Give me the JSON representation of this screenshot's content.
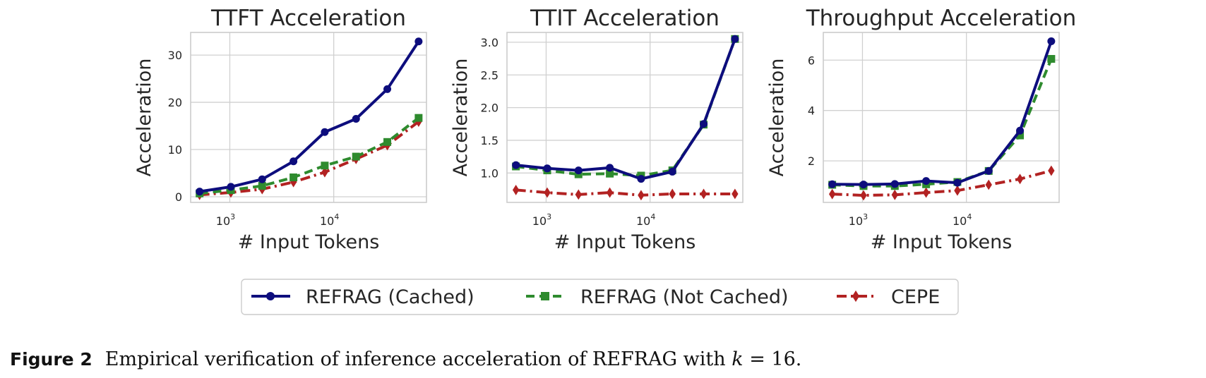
{
  "chart_data": [
    {
      "type": "line",
      "title": "TTFT Acceleration",
      "xlabel": "# Input Tokens",
      "ylabel": "Acceleration",
      "xscale": "log",
      "xlim": [
        420,
        78000
      ],
      "ylim": [
        -1.2,
        34.8
      ],
      "xticks": [
        {
          "value": 1000,
          "base": "10",
          "exp": "3"
        },
        {
          "value": 10000,
          "base": "10",
          "exp": "4"
        }
      ],
      "yticks": [
        {
          "value": 0,
          "label": "0"
        },
        {
          "value": 10,
          "label": "10"
        },
        {
          "value": 20,
          "label": "20"
        },
        {
          "value": 30,
          "label": "30"
        }
      ],
      "x": [
        512,
        1024,
        2048,
        4096,
        8192,
        16384,
        32768,
        65536
      ],
      "series": [
        {
          "name": "REFRAG (Cached)",
          "values": [
            1.1,
            2.1,
            3.7,
            7.5,
            13.7,
            16.5,
            22.8,
            32.9
          ]
        },
        {
          "name": "REFRAG (Not Cached)",
          "values": [
            0.7,
            1.4,
            2.3,
            4.1,
            6.6,
            8.5,
            11.6,
            16.7
          ]
        },
        {
          "name": "CEPE",
          "values": [
            0.4,
            0.9,
            1.6,
            3.1,
            5.2,
            8.0,
            10.9,
            15.9
          ]
        }
      ],
      "grid": true
    },
    {
      "type": "line",
      "title": "TTIT Acceleration",
      "xlabel": "# Input Tokens",
      "ylabel": "Acceleration",
      "xscale": "log",
      "xlim": [
        420,
        78000
      ],
      "ylim": [
        0.55,
        3.15
      ],
      "xticks": [
        {
          "value": 1000,
          "base": "10",
          "exp": "3"
        },
        {
          "value": 10000,
          "base": "10",
          "exp": "4"
        }
      ],
      "yticks": [
        {
          "value": 1.0,
          "label": "1.0"
        },
        {
          "value": 1.5,
          "label": "1.5"
        },
        {
          "value": 2.0,
          "label": "2.0"
        },
        {
          "value": 2.5,
          "label": "2.5"
        },
        {
          "value": 3.0,
          "label": "3.0"
        }
      ],
      "x": [
        512,
        1024,
        2048,
        4096,
        8192,
        16384,
        32768,
        65536
      ],
      "series": [
        {
          "name": "REFRAG (Cached)",
          "values": [
            1.12,
            1.07,
            1.04,
            1.08,
            0.91,
            1.02,
            1.75,
            3.05
          ]
        },
        {
          "name": "REFRAG (Not Cached)",
          "values": [
            1.1,
            1.04,
            0.98,
            0.99,
            0.96,
            1.04,
            1.74,
            3.05
          ]
        },
        {
          "name": "CEPE",
          "values": [
            0.74,
            0.7,
            0.67,
            0.7,
            0.66,
            0.68,
            0.68,
            0.68
          ]
        }
      ],
      "grid": true
    },
    {
      "type": "line",
      "title": "Throughput Acceleration",
      "xlabel": "# Input Tokens",
      "ylabel": "Acceleration",
      "xscale": "log",
      "xlim": [
        420,
        78000
      ],
      "ylim": [
        0.35,
        7.1
      ],
      "xticks": [
        {
          "value": 1000,
          "base": "10",
          "exp": "3"
        },
        {
          "value": 10000,
          "base": "10",
          "exp": "4"
        }
      ],
      "yticks": [
        {
          "value": 2,
          "label": "2"
        },
        {
          "value": 4,
          "label": "4"
        },
        {
          "value": 6,
          "label": "6"
        }
      ],
      "x": [
        512,
        1024,
        2048,
        4096,
        8192,
        16384,
        32768,
        65536
      ],
      "series": [
        {
          "name": "REFRAG (Cached)",
          "values": [
            1.07,
            1.06,
            1.08,
            1.2,
            1.13,
            1.6,
            3.2,
            6.75
          ]
        },
        {
          "name": "REFRAG (Not Cached)",
          "values": [
            1.05,
            1.0,
            1.0,
            1.07,
            1.16,
            1.6,
            3.01,
            6.05
          ]
        },
        {
          "name": "CEPE",
          "values": [
            0.68,
            0.63,
            0.65,
            0.74,
            0.82,
            1.05,
            1.28,
            1.61
          ]
        }
      ],
      "grid": true
    }
  ],
  "legend": {
    "placement": "bottom-center",
    "entries": [
      {
        "label": "REFRAG (Cached)",
        "color": "#0d0d7d",
        "dash": "solid",
        "marker": "circle"
      },
      {
        "label": "REFRAG (Not Cached)",
        "color": "#2e8b2e",
        "dash": "dashed",
        "marker": "square"
      },
      {
        "label": "CEPE",
        "color": "#b22222",
        "dash": "dashdot",
        "marker": "diamond"
      }
    ]
  },
  "caption": {
    "label": "Figure 2",
    "text_before": "Empirical verification of inference acceleration of REFRAG with ",
    "variable": "k",
    "text_after": " = 16."
  }
}
